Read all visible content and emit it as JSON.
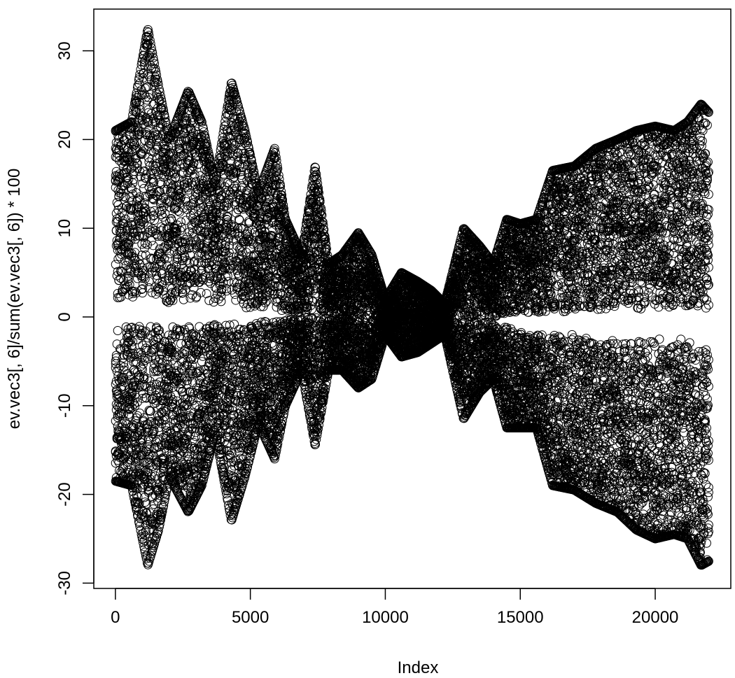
{
  "chart_data": {
    "type": "scatter",
    "title": "",
    "xlabel": "Index",
    "ylabel": "ev.vec3[, 6]/sum(ev.vec3[, 6]) * 100",
    "xlim": [
      -800,
      22800
    ],
    "ylim": [
      -30.6,
      34.7
    ],
    "x_ticks": [
      0,
      5000,
      10000,
      15000,
      20000
    ],
    "x_tick_labels": [
      "0",
      "5000",
      "10000",
      "15000",
      "20000"
    ],
    "y_ticks": [
      -30,
      -20,
      -10,
      0,
      10,
      20,
      30
    ],
    "y_tick_labels": [
      "-30",
      "-20",
      "-10",
      "0",
      "10",
      "20",
      "30"
    ],
    "marker": "open-circle",
    "color": "#000000",
    "grid": false,
    "n_points": 22000,
    "envelope": {
      "description": "approximate upper and lower extent of the point cloud by index",
      "x": [
        0,
        600,
        1200,
        1600,
        2000,
        2700,
        3200,
        3700,
        4300,
        4800,
        5300,
        5900,
        6300,
        6900,
        7400,
        7900,
        8400,
        9000,
        9500,
        10000,
        10600,
        11200,
        11700,
        12200,
        12900,
        13500,
        14000,
        14500,
        15000,
        15600,
        16200,
        17000,
        17800,
        18600,
        19300,
        20000,
        20700,
        21200,
        21700,
        22000
      ],
      "upper": [
        21,
        22,
        32.5,
        26,
        20,
        25.5,
        22,
        15,
        26.5,
        21,
        14,
        19,
        11,
        7,
        17,
        6,
        7,
        9.5,
        7,
        2,
        5,
        4,
        3,
        1.5,
        10,
        8,
        6,
        11,
        10.5,
        11,
        16.5,
        17,
        19,
        20,
        21,
        21.5,
        21,
        22,
        24,
        23
      ],
      "lower": [
        -18.5,
        -19,
        -28,
        -24,
        -18,
        -22,
        -19,
        -13,
        -23,
        -18,
        -12,
        -16,
        -10,
        -6,
        -14.5,
        -6,
        -6,
        -8,
        -7,
        -2,
        -4.5,
        -4,
        -3,
        -2,
        -11.5,
        -8.5,
        -7,
        -12.5,
        -12.5,
        -12.5,
        -19,
        -19.5,
        -21,
        -22,
        -24,
        -25,
        -24.5,
        -25,
        -28,
        -27.5
      ],
      "inner_upper": [
        2,
        2,
        3,
        2,
        1.5,
        2,
        2,
        1.5,
        2,
        1,
        1,
        1,
        0.5,
        0.5,
        0.5,
        0.5,
        0,
        0,
        0,
        -0.5,
        -0.5,
        -0.5,
        0,
        0,
        0,
        0,
        0,
        0.3,
        0.5,
        0.5,
        0.5,
        0.7,
        0.8,
        0.8,
        0.8,
        1,
        1,
        1,
        1,
        1
      ],
      "inner_lower": [
        -1,
        -1,
        -1,
        -1,
        -1,
        -1,
        -1,
        -0.8,
        -0.8,
        -0.5,
        -0.5,
        -0.5,
        -0.3,
        0,
        0,
        0,
        0,
        0,
        0,
        0.5,
        0.5,
        0.5,
        0,
        0,
        -0.5,
        -0.5,
        -0.5,
        -1,
        -1.5,
        -2,
        -2,
        -2,
        -2.5,
        -2.5,
        -2.5,
        -2.5,
        -2.5,
        -2.5,
        -3,
        -3
      ]
    }
  }
}
